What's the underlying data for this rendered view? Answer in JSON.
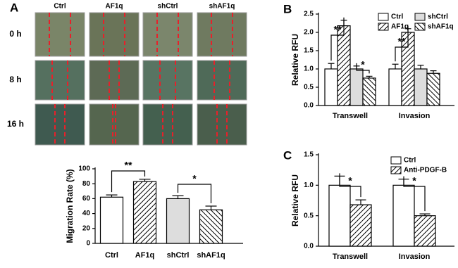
{
  "panels": [
    "A",
    "B",
    "C"
  ],
  "micrographs": {
    "columns": [
      "Ctrl",
      "AF1q",
      "shCtrl",
      "shAF1q"
    ],
    "rows": [
      "0 h",
      "8 h",
      "16 h"
    ]
  },
  "chart_data": [
    {
      "type": "bar",
      "ylabel": "Migration Rate (%)",
      "categories": [
        "Ctrl",
        "AF1q",
        "shCtrl",
        "shAF1q"
      ],
      "series": [
        {
          "values": [
            62,
            83,
            60,
            45
          ],
          "errors": [
            3,
            3,
            4,
            5
          ],
          "colors": [
            "#ffffff",
            "#ffffff",
            "#dddddd",
            "#ffffff"
          ],
          "hatches": [
            "none",
            "forward",
            "none",
            "backward"
          ]
        }
      ],
      "ylim": [
        0,
        100
      ],
      "yticks": [
        0,
        20,
        40,
        60,
        80,
        100
      ],
      "annotations": [
        "**",
        "*"
      ]
    },
    {
      "type": "bar",
      "ylabel": "Relative RFU",
      "categories": [
        "Transwell",
        "Invasion"
      ],
      "series": [
        {
          "name": "Ctrl",
          "color": "#ffffff",
          "hatch": "none",
          "values": [
            1.0,
            1.0
          ],
          "errors": [
            0.15,
            0.13
          ]
        },
        {
          "name": "AF1q",
          "color": "#ffffff",
          "hatch": "forward",
          "values": [
            2.18,
            2.0
          ],
          "errors": [
            0.15,
            0.1
          ]
        },
        {
          "name": "shCtrl",
          "color": "#dddddd",
          "hatch": "none",
          "values": [
            1.0,
            1.0
          ],
          "errors": [
            0.08,
            0.1
          ]
        },
        {
          "name": "shAF1q",
          "color": "#ffffff",
          "hatch": "backward",
          "values": [
            0.75,
            0.88
          ],
          "errors": [
            0.05,
            0.07
          ]
        }
      ],
      "ylim": [
        0,
        2.5
      ],
      "yticks": [
        {
          "value": 0,
          "label": "0.0"
        },
        {
          "value": 0.5,
          "label": "0.5"
        },
        {
          "value": 1,
          "label": "1.0"
        },
        {
          "value": 1.5,
          "label": "1.5"
        },
        {
          "value": 2,
          "label": "2.0"
        },
        {
          "value": 2.5,
          "label": "2.5"
        }
      ],
      "legend": "upper right",
      "annotations": [
        "**",
        "*",
        "**"
      ]
    },
    {
      "type": "bar",
      "ylabel": "Relative RFU",
      "categories": [
        "Transwell",
        "Invasion"
      ],
      "series": [
        {
          "name": "Ctrl",
          "color": "#ffffff",
          "hatch": "none",
          "values": [
            1.0,
            1.0
          ],
          "errors": [
            0.15,
            0.1
          ]
        },
        {
          "name": "Anti-PDGF-B",
          "color": "#ffffff",
          "hatch": "forward",
          "values": [
            0.68,
            0.5
          ],
          "errors": [
            0.08,
            0.03
          ]
        }
      ],
      "ylim": [
        0,
        1.5
      ],
      "yticks": [
        {
          "value": 0,
          "label": "0.0"
        },
        {
          "value": 0.5,
          "label": "0.5"
        },
        {
          "value": 1,
          "label": "1.0"
        },
        {
          "value": 1.5,
          "label": "1.5"
        }
      ],
      "legend": "upper right",
      "annotations": [
        "*",
        "*"
      ]
    }
  ]
}
